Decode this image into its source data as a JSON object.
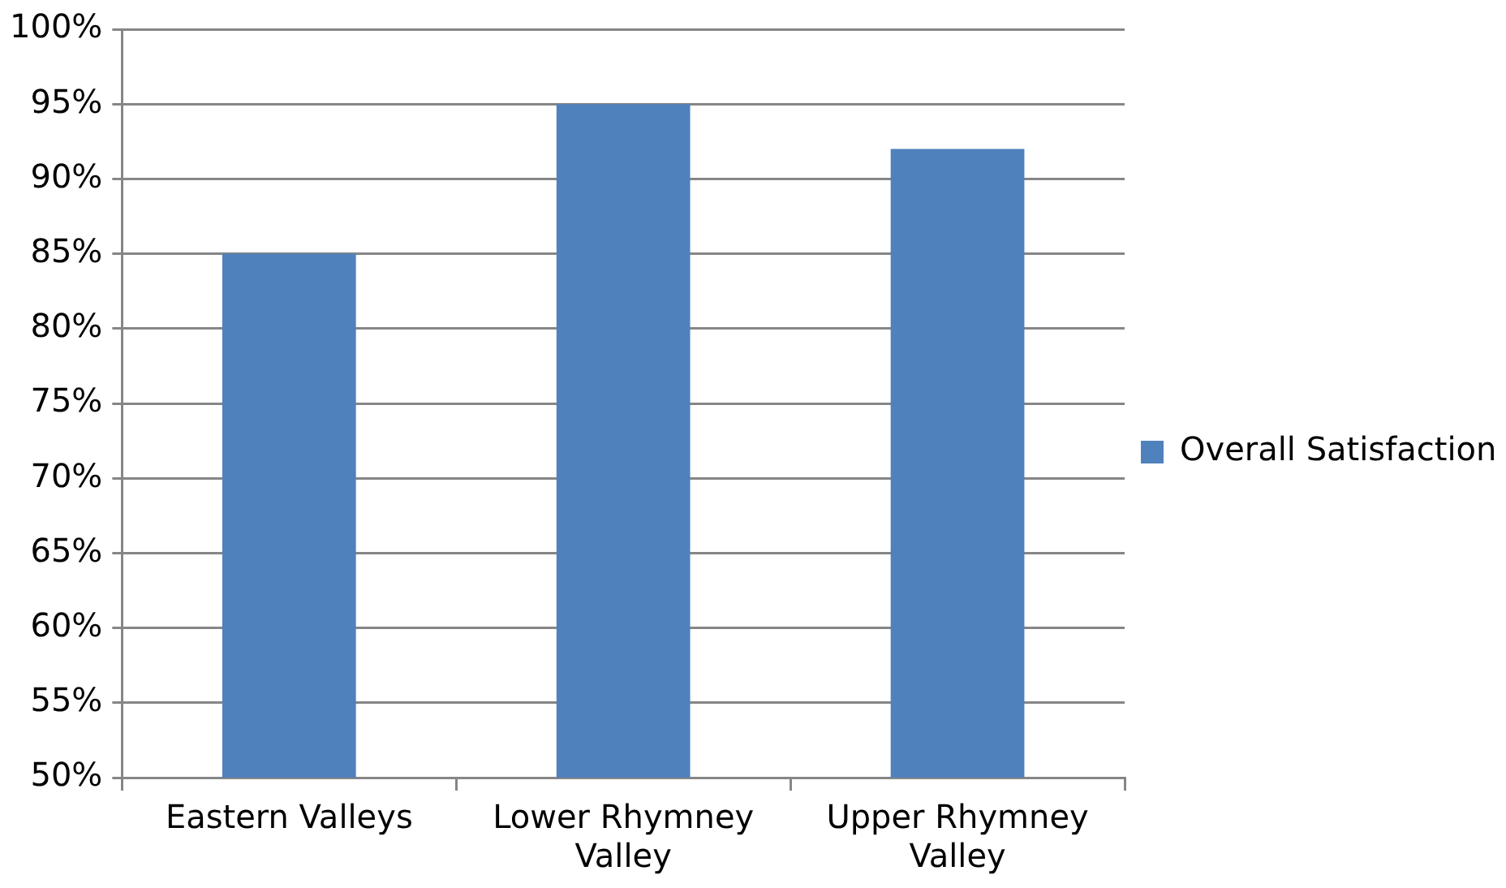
{
  "chart_data": {
    "type": "bar",
    "categories": [
      "Eastern Valleys",
      "Lower Rhymney Valley",
      "Upper Rhymney Valley"
    ],
    "series": [
      {
        "name": "Overall Satisfaction",
        "color": "#4f81bd",
        "values": [
          85,
          95,
          92
        ]
      }
    ],
    "ylim": [
      50,
      100
    ],
    "yticks": [
      {
        "value": 50,
        "label": "50%"
      },
      {
        "value": 55,
        "label": "55%"
      },
      {
        "value": 60,
        "label": "60%"
      },
      {
        "value": 65,
        "label": "65%"
      },
      {
        "value": 70,
        "label": "70%"
      },
      {
        "value": 75,
        "label": "75%"
      },
      {
        "value": 80,
        "label": "80%"
      },
      {
        "value": 85,
        "label": "85%"
      },
      {
        "value": 90,
        "label": "90%"
      },
      {
        "value": 95,
        "label": "95%"
      },
      {
        "value": 100,
        "label": "100%"
      }
    ],
    "grid": "y",
    "legend": "right"
  }
}
